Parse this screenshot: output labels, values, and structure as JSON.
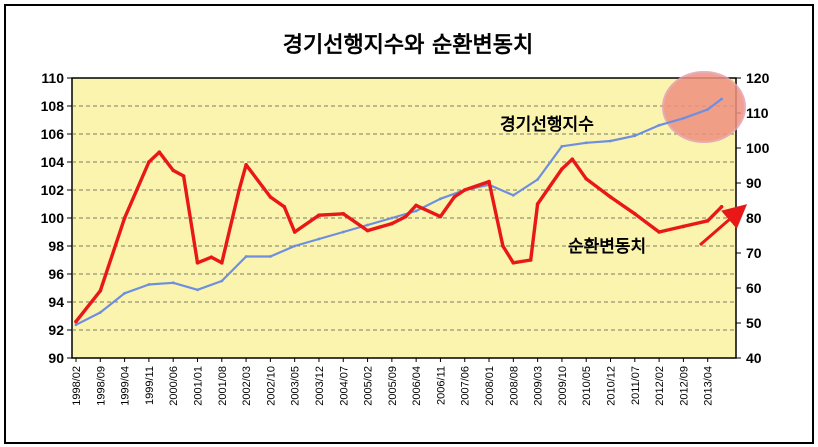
{
  "chart_data": {
    "type": "line",
    "title": "경기선행지수와 순환변동치",
    "y_left": {
      "min": 90,
      "max": 110,
      "ticks": [
        "90",
        "92",
        "94",
        "96",
        "98",
        "100",
        "102",
        "104",
        "106",
        "108",
        "110"
      ]
    },
    "y_right": {
      "min": 40,
      "max": 120,
      "ticks": [
        "40",
        "50",
        "60",
        "70",
        "80",
        "90",
        "100",
        "110",
        "120"
      ]
    },
    "x_tick_labels": [
      "1998/02",
      "1998/09",
      "1999/04",
      "1999/11",
      "2000/06",
      "2001/01",
      "2001/08",
      "2002/03",
      "2002/10",
      "2003/05",
      "2003/12",
      "2004/07",
      "2005/02",
      "2005/09",
      "2006/04",
      "2006/11",
      "2007/06",
      "2008/01",
      "2008/08",
      "2009/03",
      "2009/10",
      "2010/05",
      "2010/12",
      "2011/07",
      "2012/02",
      "2012/09",
      "2013/04"
    ],
    "grid": true,
    "series": [
      {
        "name": "경기선행지수",
        "axis": "right",
        "color": "#6E8FE0",
        "x": [
          "1998/02",
          "1998/09",
          "1999/04",
          "1999/11",
          "2000/06",
          "2001/01",
          "2001/08",
          "2002/03",
          "2002/10",
          "2003/05",
          "2003/12",
          "2004/07",
          "2005/02",
          "2005/09",
          "2006/04",
          "2006/11",
          "2007/06",
          "2008/01",
          "2008/08",
          "2009/03",
          "2009/10",
          "2010/05",
          "2010/12",
          "2011/07",
          "2012/02",
          "2012/09",
          "2013/04",
          "2013/08"
        ],
        "values": [
          49.5,
          53,
          58.5,
          61,
          61.5,
          59.5,
          62,
          69,
          69,
          72,
          74,
          76,
          78,
          80,
          82,
          85.5,
          88,
          89.5,
          86.5,
          91,
          100.5,
          101.5,
          102,
          103.5,
          106.5,
          108.5,
          111,
          114
        ]
      },
      {
        "name": "순환변동치",
        "axis": "left",
        "color": "#E81818",
        "x": [
          "1998/02",
          "1998/09",
          "1999/04",
          "1999/11",
          "2000/02",
          "2000/06",
          "2000/09",
          "2001/01",
          "2001/05",
          "2001/08",
          "2002/01",
          "2002/03",
          "2002/10",
          "2003/02",
          "2003/05",
          "2003/12",
          "2004/07",
          "2005/02",
          "2005/09",
          "2006/01",
          "2006/04",
          "2006/11",
          "2007/03",
          "2007/06",
          "2008/01",
          "2008/05",
          "2008/08",
          "2009/01",
          "2009/03",
          "2009/10",
          "2010/01",
          "2010/05",
          "2010/12",
          "2011/07",
          "2012/02",
          "2012/09",
          "2013/04",
          "2013/08"
        ],
        "values": [
          92.6,
          94.8,
          100,
          104,
          104.7,
          103.4,
          103,
          96.8,
          97.2,
          96.8,
          102,
          103.8,
          101.5,
          100.8,
          99,
          100.2,
          100.3,
          99.1,
          99.6,
          100.1,
          100.9,
          100.1,
          101.5,
          102,
          102.6,
          98,
          96.8,
          97,
          101,
          103.5,
          104.2,
          102.8,
          101.5,
          100.3,
          99,
          99.4,
          99.8,
          100.8
        ]
      }
    ],
    "annotations": [
      "경기선행지수",
      "순환변동치"
    ]
  }
}
